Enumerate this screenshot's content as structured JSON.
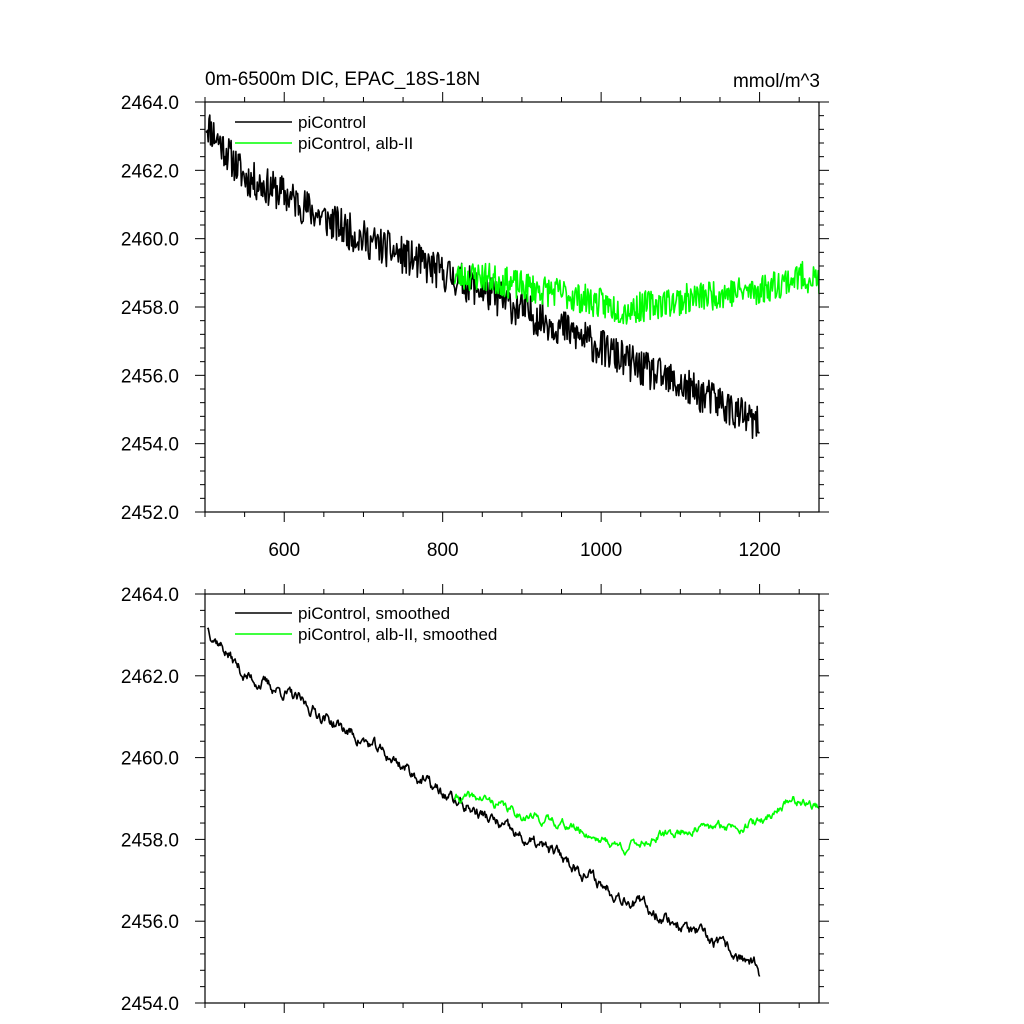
{
  "chart_data": [
    {
      "type": "line",
      "title": "0m-6500m DIC, EPAC_18S-18N",
      "units": "mmol/m^3",
      "xlim": [
        500,
        1275
      ],
      "ylim": [
        2452,
        2464
      ],
      "xticks": [
        600,
        800,
        1000,
        1200
      ],
      "xtick_labels": [
        "600",
        "800",
        "1000",
        "1200"
      ],
      "yticks": [
        2452,
        2454,
        2456,
        2458,
        2460,
        2462,
        2464
      ],
      "ytick_labels": [
        "2452.0",
        "2454.0",
        "2456.0",
        "2458.0",
        "2460.0",
        "2462.0",
        "2464.0"
      ],
      "legend_position": "top-left",
      "series": [
        {
          "name": "piControl",
          "color": "#000000",
          "noise": 0.55,
          "smooth": false,
          "seed": 11,
          "anchors": [
            [
              501,
              2463.4
            ],
            [
              550,
              2461.8
            ],
            [
              600,
              2461.3
            ],
            [
              650,
              2460.6
            ],
            [
              700,
              2460.0
            ],
            [
              750,
              2459.5
            ],
            [
              800,
              2459.0
            ],
            [
              850,
              2458.5
            ],
            [
              900,
              2457.9
            ],
            [
              950,
              2457.4
            ],
            [
              1000,
              2456.8
            ],
            [
              1050,
              2456.2
            ],
            [
              1100,
              2455.7
            ],
            [
              1150,
              2455.2
            ],
            [
              1200,
              2454.5
            ]
          ]
        },
        {
          "name": "piControl, alb-II",
          "color": "#00ff00",
          "noise": 0.45,
          "smooth": false,
          "seed": 23,
          "anchors": [
            [
              815,
              2458.9
            ],
            [
              850,
              2458.9
            ],
            [
              900,
              2458.6
            ],
            [
              950,
              2458.4
            ],
            [
              1000,
              2458.1
            ],
            [
              1030,
              2457.9
            ],
            [
              1070,
              2458.1
            ],
            [
              1100,
              2458.2
            ],
            [
              1150,
              2458.4
            ],
            [
              1200,
              2458.5
            ],
            [
              1250,
              2458.9
            ],
            [
              1275,
              2458.8
            ]
          ]
        }
      ]
    },
    {
      "type": "line",
      "title": "",
      "xlim": [
        500,
        1275
      ],
      "ylim": [
        2454,
        2464
      ],
      "xticks": [
        600,
        800,
        1000,
        1200
      ],
      "yticks": [
        2454,
        2456,
        2458,
        2460,
        2462,
        2464
      ],
      "ytick_labels": [
        "2454.0",
        "2456.0",
        "2458.0",
        "2460.0",
        "2462.0",
        "2464.0"
      ],
      "legend_position": "top-left",
      "series": [
        {
          "name": "piControl, smoothed",
          "color": "#000000",
          "noise": 0.22,
          "smooth": true,
          "seed": 37,
          "anchors": [
            [
              503,
              2463.2
            ],
            [
              550,
              2462.0
            ],
            [
              600,
              2461.6
            ],
            [
              650,
              2461.0
            ],
            [
              700,
              2460.4
            ],
            [
              750,
              2459.8
            ],
            [
              800,
              2459.1
            ],
            [
              850,
              2458.6
            ],
            [
              900,
              2458.0
            ],
            [
              950,
              2457.6
            ],
            [
              1000,
              2456.9
            ],
            [
              1050,
              2456.4
            ],
            [
              1100,
              2455.9
            ],
            [
              1150,
              2455.4
            ],
            [
              1195,
              2454.9
            ],
            [
              1200,
              2454.5
            ]
          ]
        },
        {
          "name": "piControl, alb-II, smoothed",
          "color": "#00ff00",
          "noise": 0.16,
          "smooth": true,
          "seed": 41,
          "anchors": [
            [
              815,
              2459.0
            ],
            [
              850,
              2459.0
            ],
            [
              900,
              2458.6
            ],
            [
              950,
              2458.4
            ],
            [
              1000,
              2458.0
            ],
            [
              1030,
              2457.8
            ],
            [
              1080,
              2458.1
            ],
            [
              1100,
              2458.2
            ],
            [
              1150,
              2458.3
            ],
            [
              1200,
              2458.4
            ],
            [
              1240,
              2459.0
            ],
            [
              1275,
              2458.8
            ]
          ]
        }
      ]
    }
  ]
}
